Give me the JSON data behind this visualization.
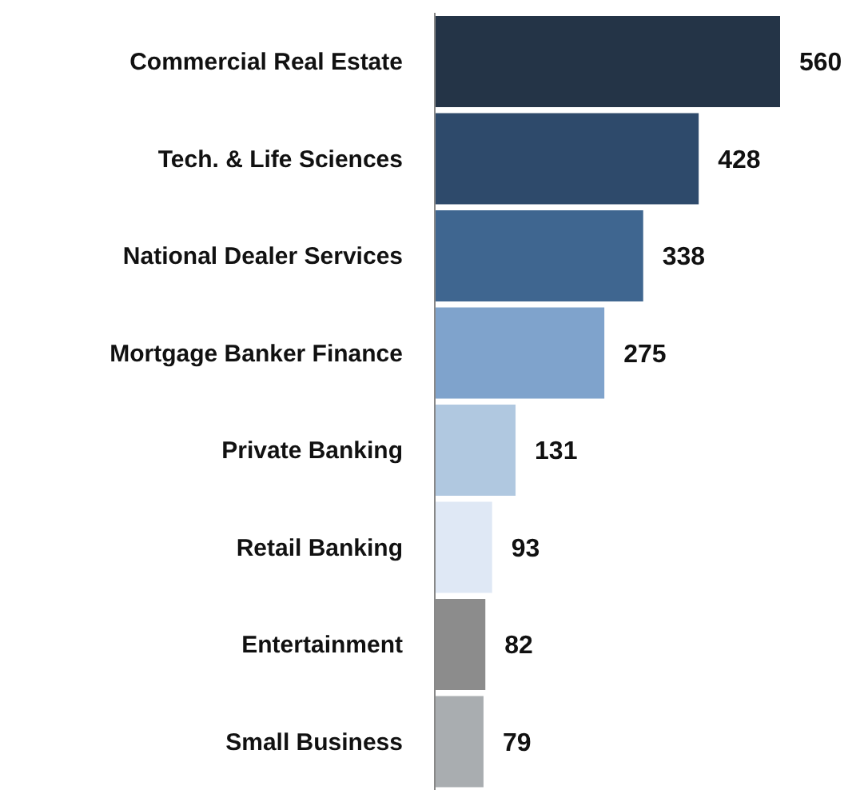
{
  "chart_data": {
    "type": "bar",
    "orientation": "horizontal",
    "data_labels": true,
    "categories": [
      "Commercial Real Estate",
      "Tech. & Life Sciences",
      "National Dealer Services",
      "Mortgage Banker Finance",
      "Private Banking",
      "Retail Banking",
      "Entertainment",
      "Small Business"
    ],
    "values": [
      560,
      428,
      338,
      275,
      131,
      93,
      82,
      79
    ],
    "colors": [
      "#243447",
      "#2e4a6b",
      "#3f6690",
      "#7fa3cc",
      "#b0c8e0",
      "#dfe8f5",
      "#8c8c8c",
      "#a9adb0"
    ]
  }
}
